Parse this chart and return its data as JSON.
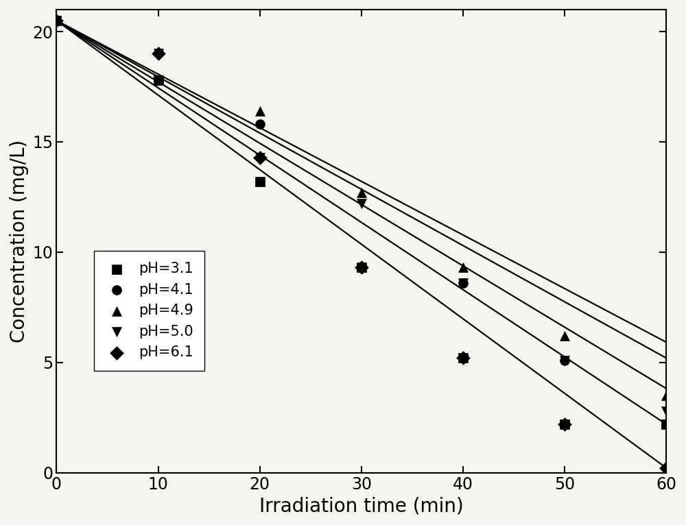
{
  "title": "",
  "xlabel": "Irradiation time (min)",
  "ylabel": "Concentration (mg/L)",
  "xlim": [
    0,
    60
  ],
  "ylim": [
    0,
    21
  ],
  "yticks": [
    0,
    5,
    10,
    15,
    20
  ],
  "xticks": [
    0,
    10,
    20,
    30,
    40,
    50,
    60
  ],
  "series": [
    {
      "label": "pH=3.1",
      "marker": "s",
      "color": "#000000",
      "x_data": [
        0,
        10,
        20,
        30,
        40,
        50,
        60
      ],
      "y_data": [
        20.5,
        17.8,
        13.2,
        9.3,
        5.2,
        2.2,
        2.2
      ],
      "line_slope": -0.305,
      "line_intercept": 20.5
    },
    {
      "label": "pH=4.1",
      "marker": "o",
      "color": "#000000",
      "x_data": [
        0,
        10,
        20,
        30,
        40,
        50,
        60
      ],
      "y_data": [
        20.5,
        17.8,
        15.8,
        9.3,
        8.6,
        5.1,
        2.2
      ],
      "line_slope": -0.278,
      "line_intercept": 20.5
    },
    {
      "label": "pH=4.9",
      "marker": "^",
      "color": "#000000",
      "x_data": [
        0,
        10,
        20,
        30,
        40,
        50,
        60
      ],
      "y_data": [
        20.5,
        17.8,
        16.4,
        12.7,
        9.3,
        6.2,
        3.5
      ],
      "line_slope": -0.255,
      "line_intercept": 20.5
    },
    {
      "label": "pH=5.0",
      "marker": "v",
      "color": "#000000",
      "x_data": [
        0,
        10,
        20,
        30,
        40,
        50,
        60
      ],
      "y_data": [
        20.5,
        19.0,
        14.3,
        12.2,
        8.6,
        5.1,
        2.8
      ],
      "line_slope": -0.243,
      "line_intercept": 20.5
    },
    {
      "label": "pH=6.1",
      "marker": "D",
      "color": "#000000",
      "x_data": [
        0,
        10,
        20,
        30,
        40,
        50,
        60
      ],
      "y_data": [
        20.5,
        19.0,
        14.3,
        9.3,
        5.2,
        2.2,
        0.2
      ],
      "line_slope": -0.338,
      "line_intercept": 20.5
    }
  ],
  "line_x": [
    0,
    60
  ],
  "background_color": "#f5f5f0",
  "marker_size": 10,
  "line_width": 1.6,
  "fontsize_labels": 20,
  "fontsize_ticks": 17,
  "fontsize_legend": 15
}
